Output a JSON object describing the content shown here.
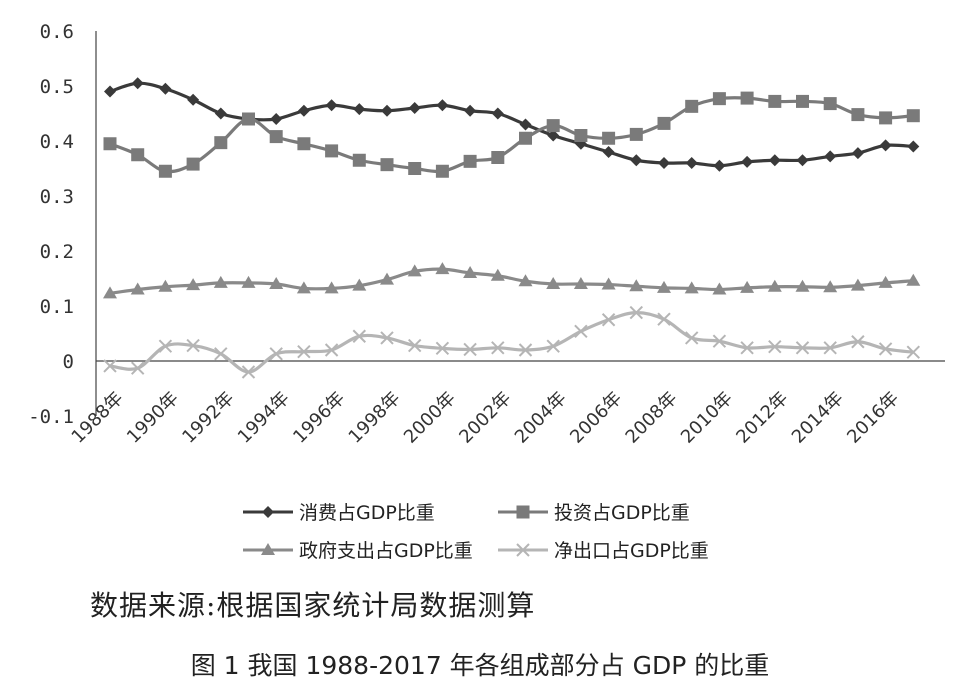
{
  "chart_data": {
    "type": "line",
    "x": [
      "1988年",
      "1989年",
      "1990年",
      "1991年",
      "1992年",
      "1993年",
      "1994年",
      "1995年",
      "1996年",
      "1997年",
      "1998年",
      "1999年",
      "2000年",
      "2001年",
      "2002年",
      "2003年",
      "2004年",
      "2005年",
      "2006年",
      "2007年",
      "2008年",
      "2009年",
      "2010年",
      "2011年",
      "2012年",
      "2013年",
      "2014年",
      "2015年",
      "2016年",
      "2017年"
    ],
    "x_tick_labels": [
      "1988年",
      "1990年",
      "1992年",
      "1994年",
      "1996年",
      "1998年",
      "2000年",
      "2002年",
      "2004年",
      "2006年",
      "2008年",
      "2010年",
      "2012年",
      "2014年",
      "2016年"
    ],
    "ylim": [
      -0.1,
      0.6
    ],
    "y_ticks": [
      -0.1,
      0,
      0.1,
      0.2,
      0.3,
      0.4,
      0.5,
      0.6
    ],
    "y_tick_labels": [
      "-0.1",
      "0",
      "0.1",
      "0.2",
      "0.3",
      "0.4",
      "0.5",
      "0.6"
    ],
    "series": [
      {
        "name": "消费占GDP比重",
        "marker": "diamond",
        "color": "#3a3a3a",
        "values": [
          0.49,
          0.505,
          0.495,
          0.475,
          0.45,
          0.44,
          0.44,
          0.455,
          0.465,
          0.458,
          0.455,
          0.46,
          0.465,
          0.455,
          0.45,
          0.43,
          0.41,
          0.395,
          0.38,
          0.365,
          0.36,
          0.36,
          0.355,
          0.362,
          0.365,
          0.365,
          0.372,
          0.378,
          0.392,
          0.39
        ]
      },
      {
        "name": "投资占GDP比重",
        "marker": "square",
        "color": "#7a7a7a",
        "values": [
          0.395,
          0.375,
          0.345,
          0.358,
          0.397,
          0.44,
          0.408,
          0.395,
          0.382,
          0.365,
          0.357,
          0.35,
          0.345,
          0.363,
          0.37,
          0.405,
          0.428,
          0.41,
          0.405,
          0.412,
          0.432,
          0.463,
          0.477,
          0.478,
          0.472,
          0.472,
          0.468,
          0.448,
          0.442,
          0.446
        ]
      },
      {
        "name": "政府支出占GDP比重",
        "marker": "triangle",
        "color": "#8a8a8a",
        "values": [
          0.123,
          0.13,
          0.135,
          0.138,
          0.142,
          0.142,
          0.14,
          0.132,
          0.132,
          0.137,
          0.148,
          0.163,
          0.167,
          0.16,
          0.155,
          0.145,
          0.14,
          0.14,
          0.139,
          0.136,
          0.133,
          0.132,
          0.13,
          0.133,
          0.135,
          0.135,
          0.134,
          0.137,
          0.142,
          0.146
        ]
      },
      {
        "name": "净出口占GDP比重",
        "marker": "x",
        "color": "#b5b5b5",
        "values": [
          -0.009,
          -0.013,
          0.027,
          0.028,
          0.013,
          -0.02,
          0.013,
          0.017,
          0.02,
          0.045,
          0.042,
          0.028,
          0.023,
          0.021,
          0.024,
          0.02,
          0.027,
          0.054,
          0.075,
          0.088,
          0.076,
          0.042,
          0.036,
          0.024,
          0.026,
          0.024,
          0.024,
          0.035,
          0.022,
          0.016
        ]
      }
    ],
    "grid": false,
    "legend_position": "bottom"
  },
  "source_text": "数据来源:根据国家统计局数据测算",
  "caption": "图 1   我国 1988-2017 年各组成部分占 GDP 的比重"
}
